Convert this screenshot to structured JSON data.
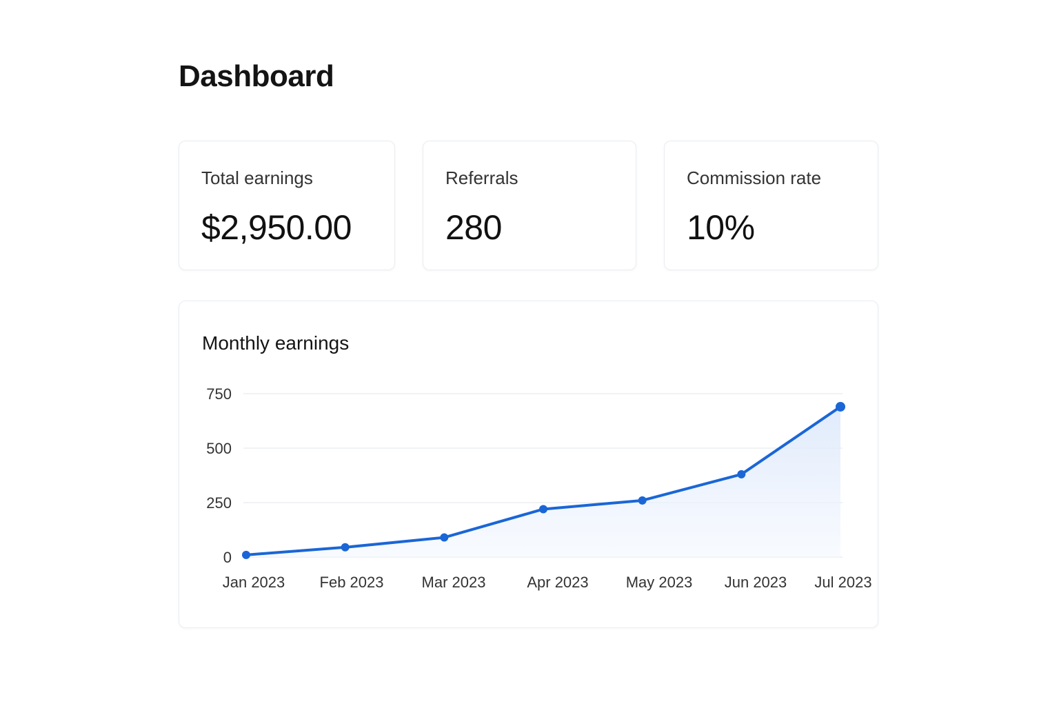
{
  "header": {
    "title": "Dashboard"
  },
  "stats": [
    {
      "label": "Total earnings",
      "value": "$2,950.00"
    },
    {
      "label": "Referrals",
      "value": "280"
    },
    {
      "label": "Commission rate",
      "value": "10%"
    }
  ],
  "colors": {
    "accent": "#1a66d6",
    "area_fill": "#e8f0fc",
    "grid": "#e3e6eb"
  },
  "chart_data": {
    "type": "line",
    "title": "Monthly earnings",
    "categories": [
      "Jan 2023",
      "Feb 2023",
      "Mar 2023",
      "Apr 2023",
      "May 2023",
      "Jun 2023",
      "Jul 2023"
    ],
    "series": [
      {
        "values": [
          10,
          45,
          90,
          220,
          260,
          380,
          690
        ]
      }
    ],
    "ylim": [
      0,
      750
    ],
    "yticks": [
      "0",
      "250",
      "500",
      "750"
    ],
    "grid": true,
    "area_fill": true
  }
}
